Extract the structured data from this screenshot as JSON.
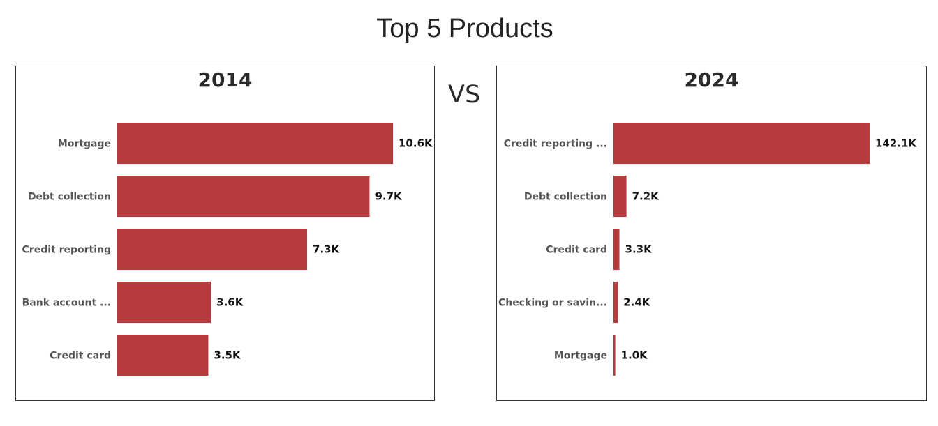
{
  "title": "Top 5 Products",
  "vs_label": "VS",
  "bar_color": "#b63b3c",
  "chart_data": [
    {
      "type": "bar",
      "orientation": "horizontal",
      "title": "2014",
      "categories": [
        "Mortgage",
        "Debt collection",
        "Credit reporting",
        "Bank account ...",
        "Credit card"
      ],
      "values": [
        10.6,
        9.7,
        7.3,
        3.6,
        3.5
      ],
      "value_labels": [
        "10.6K",
        "9.7K",
        "7.3K",
        "3.6K",
        "3.5K"
      ],
      "value_unit": "K",
      "xlim": [
        0,
        10.6
      ]
    },
    {
      "type": "bar",
      "orientation": "horizontal",
      "title": "2024",
      "categories": [
        "Credit reporting ...",
        "Debt collection",
        "Credit card",
        "Checking or savin...",
        "Mortgage"
      ],
      "values": [
        142.1,
        7.2,
        3.3,
        2.4,
        1.0
      ],
      "value_labels": [
        "142.1K",
        "7.2K",
        "3.3K",
        "2.4K",
        "1.0K"
      ],
      "value_unit": "K",
      "xlim": [
        0,
        142.1
      ]
    }
  ]
}
